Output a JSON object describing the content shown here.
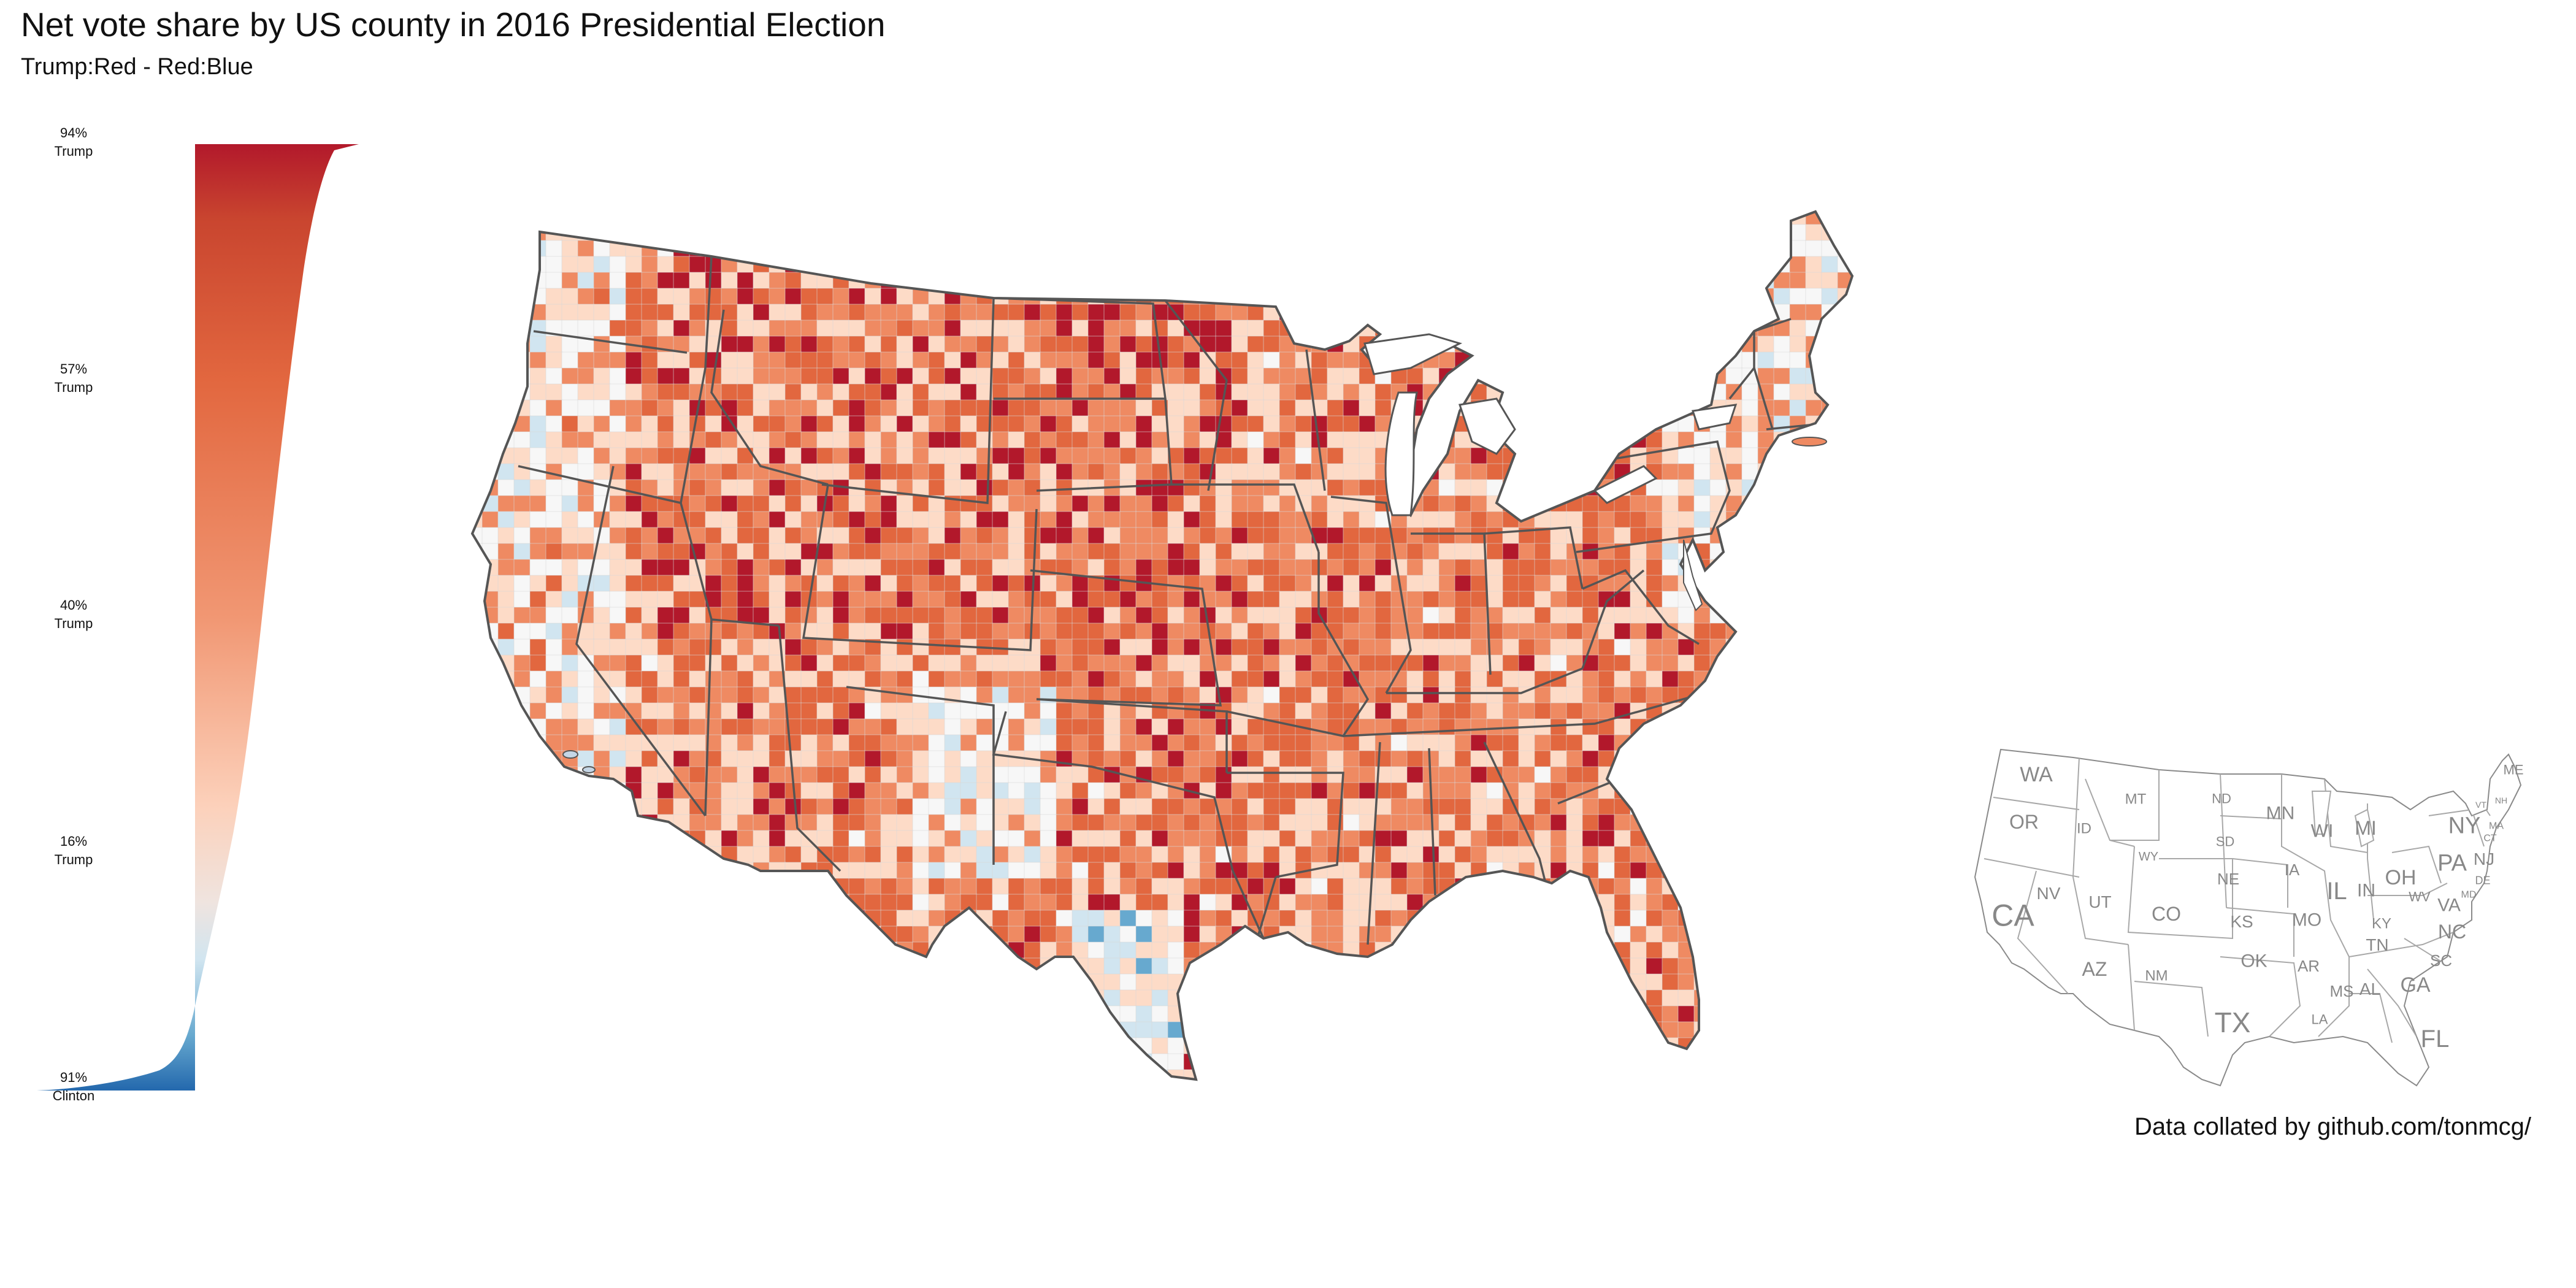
{
  "title": "Net vote share by US county in 2016 Presidential Election",
  "subtitle": "Trump:Red - Red:Blue",
  "credit": "Data collated by github.com/tonmcg/",
  "legend": {
    "ticks": [
      {
        "pct": "94%",
        "who": "Trump",
        "value": 94
      },
      {
        "pct": "57%",
        "who": "Trump",
        "value": 57
      },
      {
        "pct": "40%",
        "who": "Trump",
        "value": 40
      },
      {
        "pct": "16%",
        "who": "Trump",
        "value": 16
      },
      {
        "pct": "91%",
        "who": "Clinton",
        "value": -91
      }
    ],
    "colors": [
      "#2166ac",
      "#67a9cf",
      "#d1e5f0",
      "#f7f7f7",
      "#fddbc7",
      "#ef8a62",
      "#e2673f",
      "#b2182b"
    ]
  },
  "locator_states": [
    {
      "abbr": "WA"
    },
    {
      "abbr": "OR"
    },
    {
      "abbr": "CA"
    },
    {
      "abbr": "NV"
    },
    {
      "abbr": "ID"
    },
    {
      "abbr": "MT"
    },
    {
      "abbr": "WY"
    },
    {
      "abbr": "UT"
    },
    {
      "abbr": "AZ"
    },
    {
      "abbr": "CO"
    },
    {
      "abbr": "NM"
    },
    {
      "abbr": "ND"
    },
    {
      "abbr": "SD"
    },
    {
      "abbr": "NE"
    },
    {
      "abbr": "KS"
    },
    {
      "abbr": "OK"
    },
    {
      "abbr": "TX"
    },
    {
      "abbr": "MN"
    },
    {
      "abbr": "IA"
    },
    {
      "abbr": "MO"
    },
    {
      "abbr": "AR"
    },
    {
      "abbr": "LA"
    },
    {
      "abbr": "WI"
    },
    {
      "abbr": "IL"
    },
    {
      "abbr": "MS"
    },
    {
      "abbr": "MI"
    },
    {
      "abbr": "IN"
    },
    {
      "abbr": "KY"
    },
    {
      "abbr": "TN"
    },
    {
      "abbr": "AL"
    },
    {
      "abbr": "OH"
    },
    {
      "abbr": "GA"
    },
    {
      "abbr": "FL"
    },
    {
      "abbr": "SC"
    },
    {
      "abbr": "NC"
    },
    {
      "abbr": "VA"
    },
    {
      "abbr": "WV"
    },
    {
      "abbr": "PA"
    },
    {
      "abbr": "NY"
    },
    {
      "abbr": "NJ"
    },
    {
      "abbr": "MD"
    },
    {
      "abbr": "DE"
    },
    {
      "abbr": "CT"
    },
    {
      "abbr": "MA"
    },
    {
      "abbr": "VT"
    },
    {
      "abbr": "NH"
    },
    {
      "abbr": "ME"
    }
  ]
}
